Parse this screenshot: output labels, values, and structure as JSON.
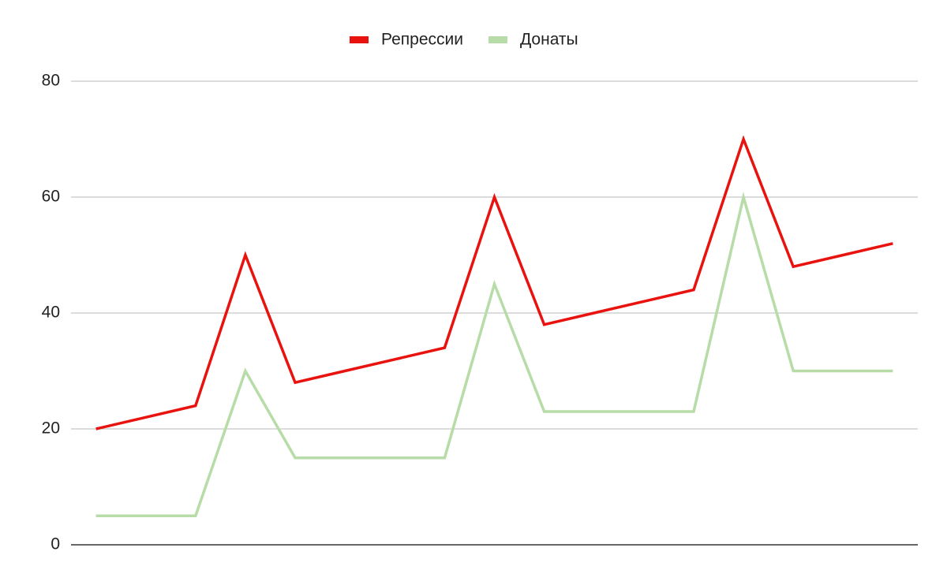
{
  "chart_data": {
    "type": "line",
    "categories": [
      null,
      null,
      null,
      null,
      null,
      null,
      null,
      null,
      null,
      null,
      null,
      null,
      null,
      null,
      null,
      null,
      null
    ],
    "series": [
      {
        "name": "Репрессии",
        "color": "#e8130f",
        "values": [
          20,
          22,
          24,
          50,
          28,
          30,
          32,
          34,
          60,
          38,
          40,
          42,
          44,
          70,
          48,
          50,
          52
        ]
      },
      {
        "name": "Донаты",
        "color": "#b7dca8",
        "values": [
          5,
          5,
          5,
          30,
          15,
          15,
          15,
          15,
          45,
          23,
          23,
          23,
          23,
          60,
          30,
          30,
          30
        ]
      }
    ],
    "ylim": [
      0,
      80
    ],
    "yticks": [
      0,
      20,
      40,
      60,
      80
    ],
    "grid": true,
    "legend": "top"
  }
}
